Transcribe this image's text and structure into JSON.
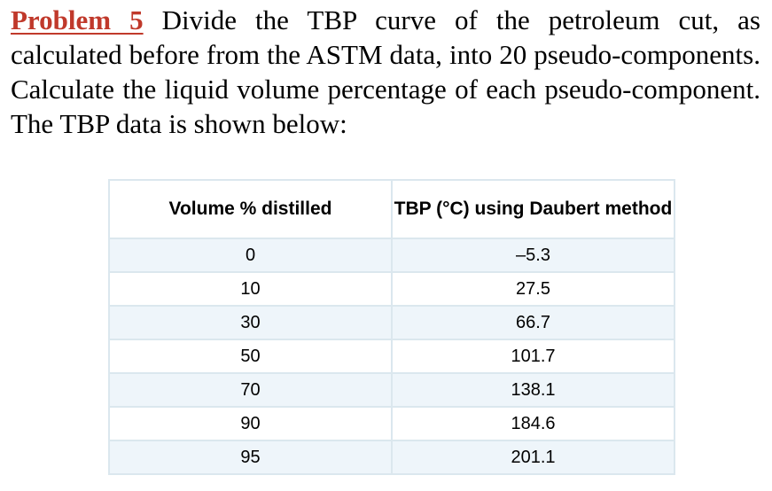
{
  "problem": {
    "label": "Problem 5",
    "text": " Divide the TBP curve of the petroleum cut, as calculated before from the ASTM data, into 20 pseudo-components. Calculate the liquid volume percentage of each pseudo-component. The TBP data is shown below:"
  },
  "table": {
    "headers": [
      "Volume % distilled",
      "TBP (°C) using Daubert method"
    ],
    "rows": [
      [
        "0",
        "–5.3"
      ],
      [
        "10",
        "27.5"
      ],
      [
        "30",
        "66.7"
      ],
      [
        "50",
        "101.7"
      ],
      [
        "70",
        "138.1"
      ],
      [
        "90",
        "184.6"
      ],
      [
        "95",
        "201.1"
      ]
    ]
  }
}
